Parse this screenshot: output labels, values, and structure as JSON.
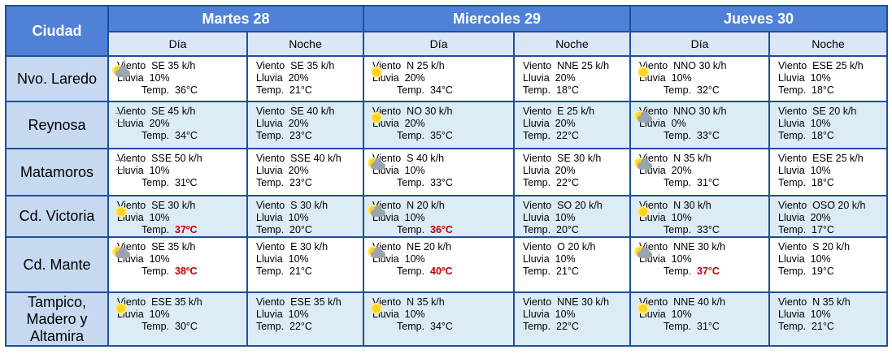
{
  "header": {
    "city_label": "Ciudad",
    "days": [
      "Martes 28",
      "Miercoles 29",
      "Jueves 30"
    ],
    "period_labels": [
      "Día",
      "Noche",
      "Día",
      "Noche",
      "Día",
      "Noche"
    ]
  },
  "labels": {
    "wind": "Viento",
    "rain": "Lluvia",
    "temp": "Temp."
  },
  "rows": [
    {
      "city": "Nvo. Laredo",
      "cells": [
        {
          "icon": "partly-cloudy-icon",
          "wind": "SE 35 k/h",
          "rain": "10%",
          "temp": "36°C",
          "hot": false
        },
        {
          "icon": "",
          "wind": "SE 35 k/h",
          "rain": "20%",
          "temp": "21°C",
          "hot": false
        },
        {
          "icon": "sun-icon",
          "wind": "N 25 k/h",
          "rain": "20%",
          "temp": "34°C",
          "hot": false
        },
        {
          "icon": "",
          "wind": "NNE 25 k/h",
          "rain": "20%",
          "temp": "18°C",
          "hot": false
        },
        {
          "icon": "sun-icon",
          "wind": "NNO 30 k/h",
          "rain": "10%",
          "temp": "32°C",
          "hot": false
        },
        {
          "icon": "",
          "wind": "ESE 25 k/h",
          "rain": "10%",
          "temp": "18°C",
          "hot": false
        }
      ]
    },
    {
      "city": "Reynosa",
      "cells": [
        {
          "icon": "wind-icon",
          "wind": "SE 45 k/h",
          "rain": "20%",
          "temp": "34°C",
          "hot": false
        },
        {
          "icon": "",
          "wind": "SE 40 k/h",
          "rain": "20%",
          "temp": "23°C",
          "hot": false
        },
        {
          "icon": "sun-icon",
          "wind": "NO 30 k/h",
          "rain": "20%",
          "temp": "35°C",
          "hot": false
        },
        {
          "icon": "",
          "wind": "E 25 k/h",
          "rain": "20%",
          "temp": "22°C",
          "hot": false
        },
        {
          "icon": "partly-cloudy-icon",
          "wind": "NNO 30 k/h",
          "rain": "0%",
          "temp": "33°C",
          "hot": false
        },
        {
          "icon": "",
          "wind": "SE 20 k/h",
          "rain": "10%",
          "temp": "18°C",
          "hot": false
        }
      ]
    },
    {
      "city": "Matamoros",
      "cells": [
        {
          "icon": "wind-icon",
          "wind": "SSE 50 k/h",
          "rain": "10%",
          "temp": "31ºC",
          "hot": false
        },
        {
          "icon": "",
          "wind": "SSE 40 k/h",
          "rain": "20%",
          "temp": "23°C",
          "hot": false
        },
        {
          "icon": "partly-cloudy-icon",
          "wind": "S 40 k/h",
          "rain": "10%",
          "temp": "33°C",
          "hot": false
        },
        {
          "icon": "",
          "wind": "SE 30 k/h",
          "rain": "20%",
          "temp": "22°C",
          "hot": false
        },
        {
          "icon": "partly-cloudy-icon",
          "wind": "N 35 k/h",
          "rain": "20%",
          "temp": "31°C",
          "hot": false
        },
        {
          "icon": "",
          "wind": "ESE 25 k/h",
          "rain": "10%",
          "temp": "18°C",
          "hot": false
        }
      ]
    },
    {
      "city": "Cd. Victoria",
      "cells": [
        {
          "icon": "sun-icon",
          "wind": "SE 30 k/h",
          "rain": "10%",
          "temp": "37ºC",
          "hot": true
        },
        {
          "icon": "",
          "wind": "S 30 k/h",
          "rain": "10%",
          "temp": "20°C",
          "hot": false
        },
        {
          "icon": "partly-cloudy-icon",
          "wind": "N 20 k/h",
          "rain": "10%",
          "temp": "36°C",
          "hot": true
        },
        {
          "icon": "",
          "wind": "SO 20 k/h",
          "rain": "10%",
          "temp": "20°C",
          "hot": false
        },
        {
          "icon": "sun-icon",
          "wind": "N 30 k/h",
          "rain": "10%",
          "temp": "33°C",
          "hot": false
        },
        {
          "icon": "",
          "wind": "OSO 20 k/h",
          "rain": "20%",
          "temp": "17°C",
          "hot": false
        }
      ]
    },
    {
      "city": "Cd. Mante",
      "cells": [
        {
          "icon": "partly-cloudy-icon",
          "wind": "SE 35 k/h",
          "rain": "10%",
          "temp": "38ºC",
          "hot": true
        },
        {
          "icon": "",
          "wind": "E 30 k/h",
          "rain": "10%",
          "temp": "21°C",
          "hot": false
        },
        {
          "icon": "partly-cloudy-icon",
          "wind": "NE 20 k/h",
          "rain": "10%",
          "temp": "40ºC",
          "hot": true
        },
        {
          "icon": "",
          "wind": "O 20 k/h",
          "rain": "10%",
          "temp": "21°C",
          "hot": false
        },
        {
          "icon": "partly-cloudy-icon",
          "wind": "NNE 30 k/h",
          "rain": "10%",
          "temp": "37°C",
          "hot": true
        },
        {
          "icon": "",
          "wind": "S 20 k/h",
          "rain": "10%",
          "temp": "19°C",
          "hot": false
        }
      ]
    },
    {
      "city": "Tampico, Madero y Altamira",
      "cells": [
        {
          "icon": "sun-icon",
          "wind": "ESE 35 k/h",
          "rain": "10%",
          "temp": "30°C",
          "hot": false
        },
        {
          "icon": "",
          "wind": "ESE 35 k/h",
          "rain": "10%",
          "temp": "22°C",
          "hot": false
        },
        {
          "icon": "sun-icon",
          "wind": "N 35 k/h",
          "rain": "10%",
          "temp": "34°C",
          "hot": false
        },
        {
          "icon": "",
          "wind": "NNE 30 k/h",
          "rain": "10%",
          "temp": "22°C",
          "hot": false
        },
        {
          "icon": "sun-icon",
          "wind": "NNE 40 k/h",
          "rain": "10%",
          "temp": "31°C",
          "hot": false
        },
        {
          "icon": "",
          "wind": "N 35 k/h",
          "rain": "10%",
          "temp": "21°C",
          "hot": false
        }
      ]
    }
  ]
}
